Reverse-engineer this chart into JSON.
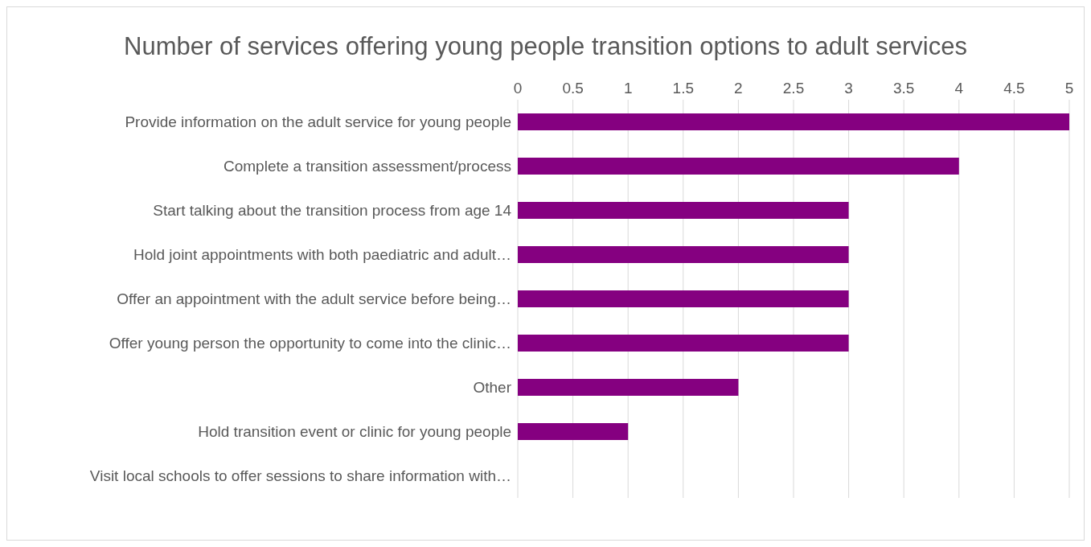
{
  "chart_data": {
    "type": "bar",
    "orientation": "horizontal",
    "title": "Number of services offering young people transition options to adult services",
    "categories": [
      "Provide information on the adult service for young people",
      "Complete a transition assessment/process",
      "Start talking about the transition process from age 14",
      "Hold joint appointments with both paediatric and adult…",
      "Offer an appointment with the adult service before being…",
      "Offer young person the opportunity to come into the clinic…",
      "Other",
      "Hold transition event or clinic for young people",
      "Visit local schools to offer sessions to share information with…"
    ],
    "values": [
      5,
      4,
      3,
      3,
      3,
      3,
      2,
      1,
      0
    ],
    "color": "#850080",
    "xlim": [
      0,
      5
    ],
    "xticks": [
      0,
      0.5,
      1,
      1.5,
      2,
      2.5,
      3,
      3.5,
      4,
      4.5,
      5
    ],
    "grid": "x"
  }
}
